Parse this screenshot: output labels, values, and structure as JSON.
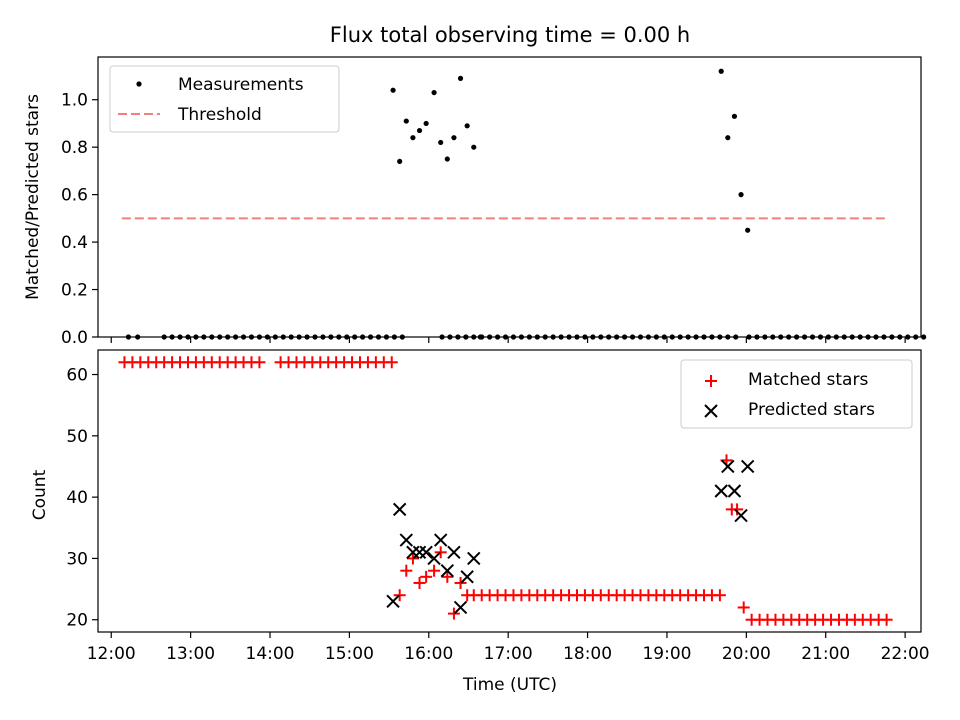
{
  "chart_data": [
    {
      "type": "scatter",
      "title": "Flux total observing time = 0.00 h",
      "xlabel": "",
      "ylabel": "Matched/Predicted stars",
      "ylim": [
        0,
        1.18
      ],
      "y_ticks": [
        "0.0",
        "0.2",
        "0.4",
        "0.6",
        "0.8",
        "1.0"
      ],
      "legend": {
        "placement": "top-left",
        "entries": [
          "Measurements",
          "Threshold"
        ]
      },
      "threshold": {
        "name": "Threshold",
        "value": 0.5,
        "x_range": [
          "12:08",
          "21:45"
        ],
        "color": "#f08080"
      },
      "series": [
        {
          "name": "Measurements",
          "color": "#000000",
          "x": [
            "12:13",
            "12:20",
            "12:40",
            "12:46",
            "12:52",
            "12:58",
            "13:04",
            "13:10",
            "13:16",
            "13:22",
            "13:28",
            "13:34",
            "13:40",
            "13:46",
            "13:52",
            "13:58",
            "14:04",
            "14:10",
            "14:16",
            "14:22",
            "14:28",
            "14:34",
            "14:40",
            "14:46",
            "14:52",
            "14:58",
            "15:04",
            "15:10",
            "15:16",
            "15:22",
            "15:28",
            "15:34",
            "15:40",
            "16:10",
            "16:16",
            "16:22",
            "16:28",
            "16:34",
            "16:40",
            "16:46",
            "16:52",
            "16:58",
            "17:04",
            "17:10",
            "17:16",
            "17:22",
            "17:28",
            "17:34",
            "17:40",
            "17:46",
            "17:52",
            "17:58",
            "18:04",
            "18:10",
            "18:16",
            "18:22",
            "18:28",
            "18:34",
            "18:40",
            "18:46",
            "18:52",
            "18:58",
            "19:04",
            "19:10",
            "19:16",
            "19:22",
            "19:28",
            "19:34",
            "19:40",
            "19:46",
            "19:52",
            "20:02",
            "20:08",
            "20:14",
            "20:20",
            "20:26",
            "20:32",
            "20:38",
            "20:44",
            "20:50",
            "20:56",
            "21:02",
            "21:08",
            "21:14",
            "21:20",
            "21:26",
            "21:32",
            "21:38",
            "21:44",
            "21:50",
            "21:56",
            "22:02",
            "22:08",
            "22:14",
            "15:33",
            "15:38",
            "15:43",
            "15:48",
            "15:53",
            "15:58",
            "16:04",
            "16:09",
            "16:14",
            "16:19",
            "16:24",
            "16:29",
            "16:34",
            "16:39",
            "19:41",
            "19:46",
            "19:51",
            "19:56",
            "20:01"
          ],
          "y": [
            0,
            0,
            0,
            0,
            0,
            0,
            0,
            0,
            0,
            0,
            0,
            0,
            0,
            0,
            0,
            0,
            0,
            0,
            0,
            0,
            0,
            0,
            0,
            0,
            0,
            0,
            0,
            0,
            0,
            0,
            0,
            0,
            0,
            0,
            0,
            0,
            0,
            0,
            0,
            0,
            0,
            0,
            0,
            0,
            0,
            0,
            0,
            0,
            0,
            0,
            0,
            0,
            0,
            0,
            0,
            0,
            0,
            0,
            0,
            0,
            0,
            0,
            0,
            0,
            0,
            0,
            0,
            0,
            0,
            0,
            0,
            0,
            0,
            0,
            0,
            0,
            0,
            0,
            0,
            0,
            0,
            0,
            0,
            0,
            0,
            0,
            0,
            0,
            0,
            0,
            0,
            0,
            0,
            0,
            1.04,
            0.74,
            0.91,
            0.84,
            0.87,
            0.9,
            1.03,
            0.82,
            0.75,
            0.84,
            1.09,
            0.89,
            0.8,
            0.0,
            1.12,
            0.84,
            0.93,
            0.6,
            0.45
          ]
        }
      ]
    },
    {
      "type": "scatter",
      "title": "",
      "xlabel": "Time (UTC)",
      "ylabel": "Count",
      "ylim": [
        18,
        64
      ],
      "y_ticks": [
        "20",
        "30",
        "40",
        "50",
        "60"
      ],
      "x_ticks": [
        "12:00",
        "13:00",
        "14:00",
        "15:00",
        "16:00",
        "17:00",
        "18:00",
        "19:00",
        "20:00",
        "21:00",
        "22:00"
      ],
      "xlim": [
        "11:50",
        "22:12"
      ],
      "legend": {
        "placement": "top-right",
        "entries": [
          "Matched stars",
          "Predicted stars"
        ]
      },
      "series": [
        {
          "name": "Matched stars",
          "color": "#ff0000",
          "x": [
            "12:10",
            "12:16",
            "12:22",
            "12:28",
            "12:34",
            "12:40",
            "12:46",
            "12:52",
            "12:58",
            "13:04",
            "13:10",
            "13:16",
            "13:22",
            "13:28",
            "13:34",
            "13:40",
            "13:46",
            "13:52",
            "14:08",
            "14:14",
            "14:20",
            "14:26",
            "14:32",
            "14:38",
            "14:44",
            "14:50",
            "14:56",
            "15:02",
            "15:08",
            "15:14",
            "15:20",
            "15:26",
            "15:32",
            "15:38",
            "15:43",
            "15:48",
            "15:53",
            "15:58",
            "16:04",
            "16:09",
            "16:14",
            "16:19",
            "16:24",
            "16:29",
            "16:34",
            "16:40",
            "16:46",
            "16:52",
            "16:58",
            "17:04",
            "17:10",
            "17:16",
            "17:22",
            "17:28",
            "17:34",
            "17:40",
            "17:46",
            "17:52",
            "17:58",
            "18:04",
            "18:10",
            "18:16",
            "18:22",
            "18:28",
            "18:34",
            "18:40",
            "18:46",
            "18:52",
            "18:58",
            "19:04",
            "19:10",
            "19:16",
            "19:22",
            "19:28",
            "19:34",
            "19:40",
            "19:45",
            "19:49",
            "19:53",
            "19:58",
            "20:04",
            "20:10",
            "20:16",
            "20:22",
            "20:28",
            "20:34",
            "20:40",
            "20:46",
            "20:52",
            "20:58",
            "21:04",
            "21:10",
            "21:16",
            "21:22",
            "21:28",
            "21:34",
            "21:40",
            "21:46"
          ],
          "y": [
            62,
            62,
            62,
            62,
            62,
            62,
            62,
            62,
            62,
            62,
            62,
            62,
            62,
            62,
            62,
            62,
            62,
            62,
            62,
            62,
            62,
            62,
            62,
            62,
            62,
            62,
            62,
            62,
            62,
            62,
            62,
            62,
            62,
            24,
            28,
            30,
            26,
            27,
            28,
            31,
            27,
            21,
            26,
            24,
            24,
            24,
            24,
            24,
            24,
            24,
            24,
            24,
            24,
            24,
            24,
            24,
            24,
            24,
            24,
            24,
            24,
            24,
            24,
            24,
            24,
            24,
            24,
            24,
            24,
            24,
            24,
            24,
            24,
            24,
            24,
            24,
            46,
            38,
            38,
            22,
            20,
            20,
            20,
            20,
            20,
            20,
            20,
            20,
            20,
            20,
            20,
            20,
            20,
            20,
            20,
            20,
            20,
            20
          ]
        },
        {
          "name": "Predicted stars",
          "color": "#000000",
          "x": [
            "15:33",
            "15:38",
            "15:43",
            "15:48",
            "15:53",
            "15:58",
            "16:04",
            "16:09",
            "16:14",
            "16:19",
            "16:24",
            "16:29",
            "16:34",
            "19:41",
            "19:46",
            "19:51",
            "19:56",
            "20:01"
          ],
          "y": [
            23,
            38,
            33,
            31,
            31,
            31,
            30,
            33,
            28,
            31,
            22,
            27,
            30,
            41,
            45,
            41,
            37,
            45
          ]
        }
      ]
    }
  ]
}
